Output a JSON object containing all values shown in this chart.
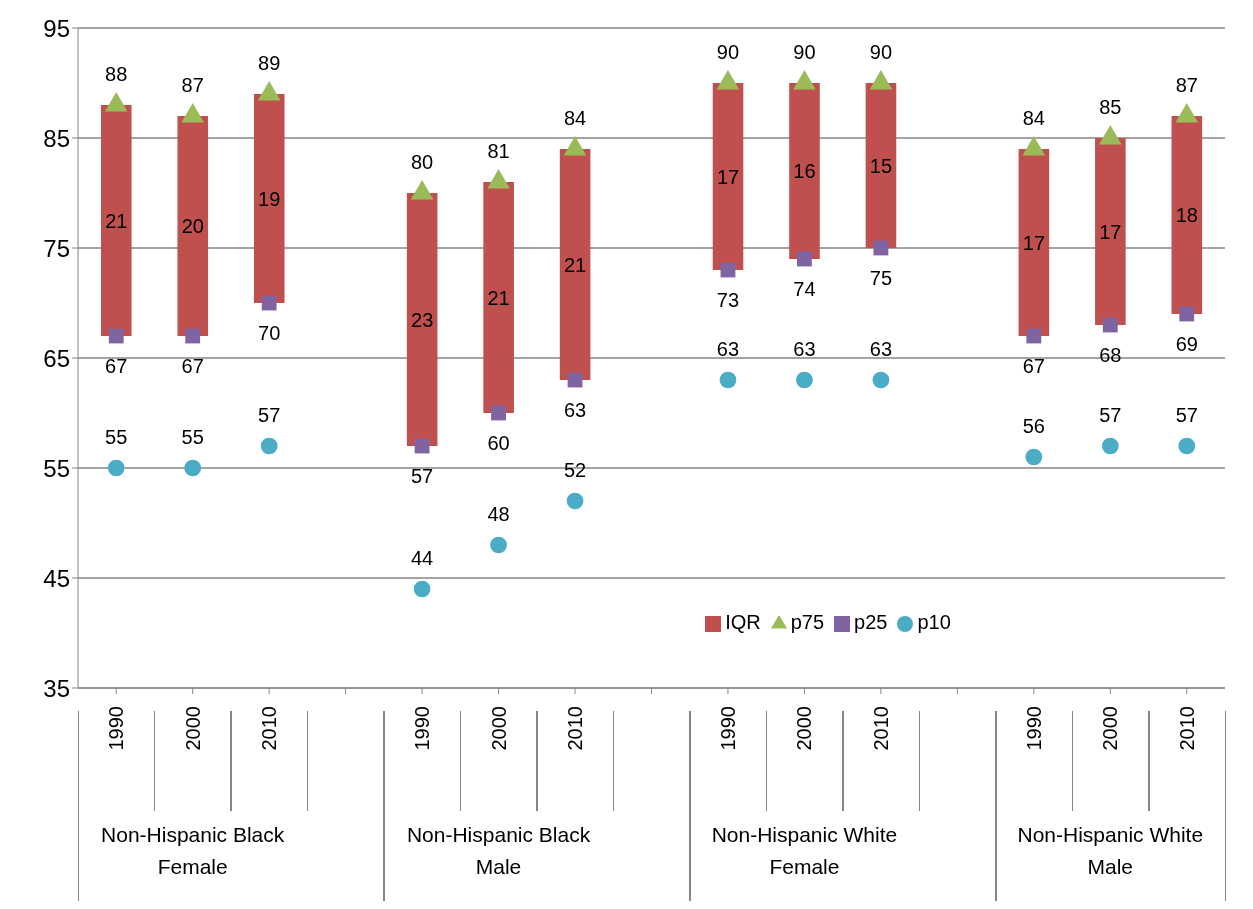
{
  "chart_data": {
    "type": "bar",
    "categories": [
      "1990",
      "2000",
      "2010",
      null,
      "1990",
      "2000",
      "2010",
      null,
      "1990",
      "2000",
      "2010",
      null,
      "1990",
      "2000",
      "2010"
    ],
    "annotations": [
      "Non-Hispanic Black Female",
      "Non-Hispanic Black Male",
      "Non-Hispanic White Female",
      "Non-Hispanic White Male"
    ],
    "series": [
      {
        "name": "IQR",
        "color": "#c0504d",
        "base": [
          67,
          67,
          70,
          null,
          57,
          60,
          63,
          null,
          73,
          74,
          75,
          null,
          67,
          68,
          69
        ],
        "values": [
          21,
          20,
          19,
          null,
          23,
          21,
          21,
          null,
          17,
          16,
          15,
          null,
          17,
          17,
          18
        ]
      },
      {
        "name": "p75",
        "type": "scatter",
        "marker": "triangle",
        "color": "#9bbb59",
        "values": [
          88,
          87,
          89,
          null,
          80,
          81,
          84,
          null,
          90,
          90,
          90,
          null,
          84,
          85,
          87
        ]
      },
      {
        "name": "p25",
        "type": "scatter",
        "marker": "square",
        "color": "#8064a2",
        "values": [
          67,
          67,
          70,
          null,
          57,
          60,
          63,
          null,
          73,
          74,
          75,
          null,
          67,
          68,
          69
        ]
      },
      {
        "name": "p10",
        "type": "scatter",
        "marker": "circle",
        "color": "#4bacc6",
        "values": [
          55,
          55,
          57,
          null,
          44,
          48,
          52,
          null,
          63,
          63,
          63,
          null,
          56,
          57,
          57
        ]
      }
    ],
    "ylim": [
      35,
      95
    ],
    "yticks": [
      35,
      45,
      55,
      65,
      75,
      85,
      95
    ],
    "grid": "y",
    "legend": "bottom right",
    "data_labels": true
  }
}
